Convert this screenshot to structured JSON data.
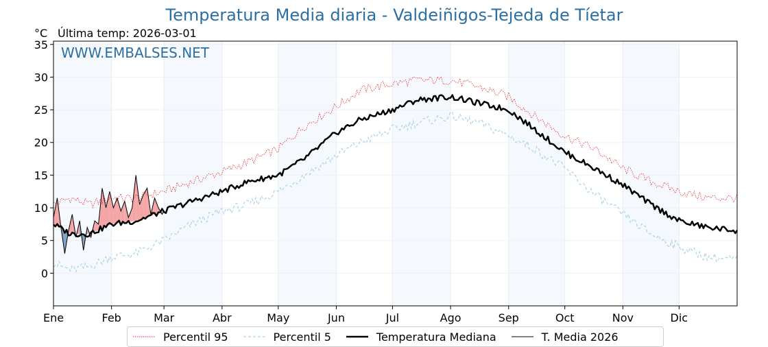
{
  "title": "Temperatura Media diaria - Valdeiñigos-Tejeda de Tíetar",
  "unit_label": "°C",
  "last_temp_label": "Última temp: 2026-03-01",
  "watermark": "WWW.EMBALSES.NET",
  "colors": {
    "p95": "#e8262b",
    "p5": "#a9d4e6",
    "median": "#000000",
    "current": "#000000",
    "above": "#f4a6a6",
    "below": "#7fa3c4",
    "band": "#f5f9fd",
    "title": "#2c6fa3"
  },
  "chart_data": {
    "type": "line",
    "title": "Temperatura Media diaria - Valdeiñigos-Tejeda de Tíetar",
    "ylabel": "°C",
    "ylim": [
      -5,
      35.5
    ],
    "yticks": [
      0,
      5,
      10,
      15,
      20,
      25,
      30,
      35
    ],
    "xlim": [
      1,
      366
    ],
    "month_ticks": [
      {
        "label": "Ene",
        "day": 1
      },
      {
        "label": "Feb",
        "day": 32
      },
      {
        "label": "Mar",
        "day": 60
      },
      {
        "label": "Abr",
        "day": 91
      },
      {
        "label": "May",
        "day": 121
      },
      {
        "label": "Jun",
        "day": 152
      },
      {
        "label": "Jul",
        "day": 182
      },
      {
        "label": "Ago",
        "day": 213
      },
      {
        "label": "Sep",
        "day": 244
      },
      {
        "label": "Oct",
        "day": 274
      },
      {
        "label": "Nov",
        "day": 305
      },
      {
        "label": "Dic",
        "day": 335
      }
    ],
    "grid": true,
    "legend_position": "bottom",
    "series": [
      {
        "name": "Percentil 95",
        "style": "dotted-red",
        "x": [
          1,
          10,
          20,
          32,
          45,
          60,
          75,
          91,
          105,
          121,
          135,
          152,
          165,
          182,
          195,
          213,
          228,
          244,
          258,
          274,
          290,
          305,
          320,
          335,
          350,
          366
        ],
        "y": [
          10.5,
          11.5,
          10.5,
          11.5,
          11.5,
          12.5,
          14,
          15.5,
          17,
          19,
          22.5,
          25.5,
          28,
          29,
          29.5,
          29.5,
          28.5,
          27,
          24,
          21,
          19,
          16,
          14,
          12.5,
          11.5,
          11.5
        ]
      },
      {
        "name": "Percentil 5",
        "style": "dashed-lightblue",
        "x": [
          1,
          10,
          20,
          32,
          45,
          60,
          75,
          91,
          105,
          121,
          135,
          152,
          165,
          182,
          195,
          213,
          228,
          244,
          258,
          274,
          290,
          305,
          320,
          335,
          350,
          366
        ],
        "y": [
          1.5,
          0.5,
          1,
          2.5,
          3,
          5,
          7.5,
          9.5,
          10.5,
          12.5,
          15,
          18,
          20,
          22,
          23,
          24,
          23,
          21,
          19,
          16,
          12,
          9,
          6,
          4,
          2.5,
          2
        ]
      },
      {
        "name": "Temperatura Mediana",
        "style": "thick-black",
        "x": [
          1,
          10,
          20,
          32,
          45,
          60,
          75,
          91,
          105,
          121,
          135,
          152,
          165,
          182,
          195,
          213,
          228,
          244,
          258,
          274,
          290,
          305,
          320,
          335,
          350,
          366
        ],
        "y": [
          7.5,
          6,
          6,
          7.5,
          8,
          9.5,
          11,
          12.5,
          14,
          15,
          17.5,
          21.5,
          23.5,
          25,
          26.5,
          27,
          26,
          25,
          22,
          18.5,
          16,
          13.5,
          10.5,
          8,
          7,
          6.5
        ]
      },
      {
        "name": "T. Media 2026",
        "style": "thin-black",
        "x": [
          1,
          3,
          5,
          7,
          9,
          11,
          13,
          15,
          17,
          19,
          21,
          23,
          25,
          27,
          29,
          31,
          33,
          35,
          37,
          39,
          41,
          43,
          45,
          47,
          49,
          51,
          53,
          55,
          57,
          59,
          60
        ],
        "y": [
          8.5,
          11.5,
          7,
          3,
          6.5,
          9,
          5.5,
          8,
          3.5,
          7,
          5.5,
          8,
          7.5,
          13,
          10,
          12.5,
          10,
          11.5,
          9.5,
          11,
          8.5,
          10,
          15,
          10.5,
          12,
          13,
          9,
          11.5,
          10,
          9,
          9.5
        ]
      }
    ]
  },
  "legend": {
    "p95": "Percentil 95",
    "p5": "Percentil 5",
    "median": "Temperatura Mediana",
    "current": "T. Media 2026"
  }
}
